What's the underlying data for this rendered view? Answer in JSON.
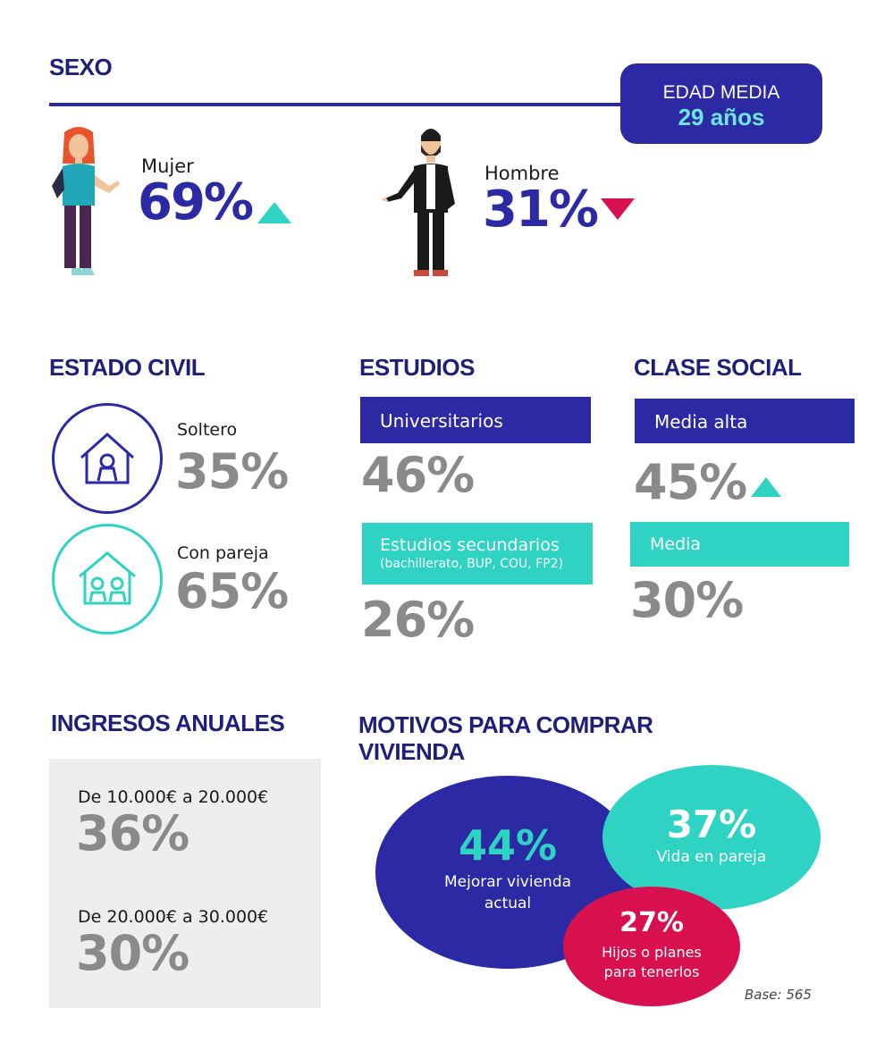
{
  "sexo": {
    "title": "SEXO",
    "edad_media": {
      "label": "EDAD MEDIA",
      "value": "29 años"
    },
    "mujer": {
      "label": "Mujer",
      "value": "69%"
    },
    "hombre": {
      "label": "Hombre",
      "value": "31%"
    }
  },
  "estado_civil": {
    "title": "ESTADO CIVIL",
    "items": [
      {
        "label": "Soltero",
        "value": "35%"
      },
      {
        "label": "Con pareja",
        "value": "65%"
      }
    ]
  },
  "estudios": {
    "title": "ESTUDIOS",
    "items": [
      {
        "label": "Universitarios",
        "sublabel": "",
        "value": "46%"
      },
      {
        "label": "Estudios secundarios",
        "sublabel": "(bachillerato, BUP, COU, FP2)",
        "value": "26%"
      }
    ]
  },
  "clase_social": {
    "title": "CLASE SOCIAL",
    "items": [
      {
        "label": "Media alta",
        "value": "45%"
      },
      {
        "label": "Media",
        "value": "30%"
      }
    ]
  },
  "ingresos": {
    "title": "INGRESOS ANUALES",
    "items": [
      {
        "label": "De 10.000€ a 20.000€",
        "value": "36%"
      },
      {
        "label": "De 20.000€ a 30.000€",
        "value": "30%"
      }
    ]
  },
  "motivos": {
    "title_line1": "MOTIVOS PARA COMPRAR",
    "title_line2": "VIVIENDA",
    "items": [
      {
        "value": "44%",
        "label_line1": "Mejorar vivienda",
        "label_line2": "actual"
      },
      {
        "value": "37%",
        "label_line1": "Vida en pareja",
        "label_line2": ""
      },
      {
        "value": "27%",
        "label_line1": "Hijos o planes",
        "label_line2": "para tenerlos"
      }
    ],
    "base": "Base: 565"
  },
  "colors": {
    "navy": "#2b29a3",
    "teal": "#2ed3c4",
    "crimson": "#d8104f",
    "gray": "#8a8a8a"
  }
}
